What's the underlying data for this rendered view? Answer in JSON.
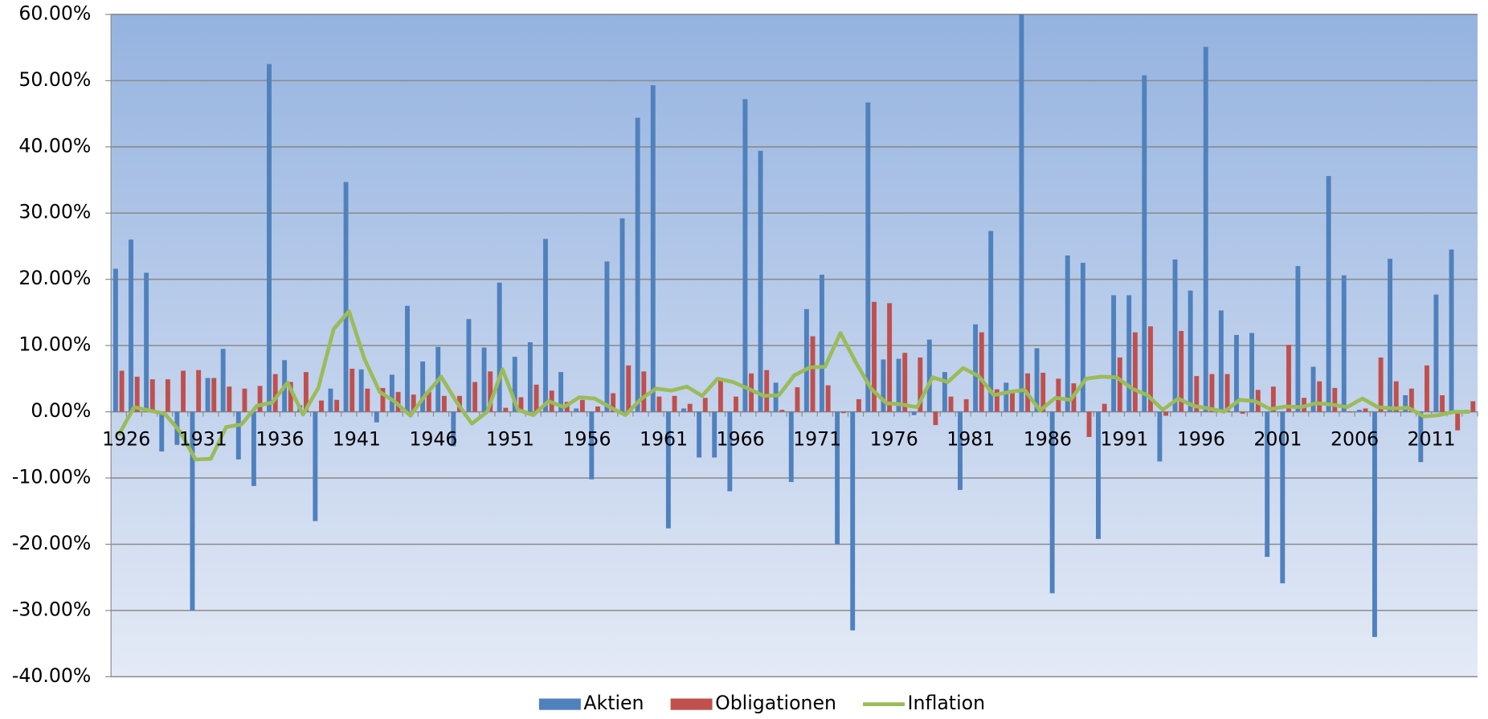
{
  "chart_data": {
    "type": "bar",
    "categories": [
      "1926",
      null,
      null,
      null,
      null,
      "1931",
      null,
      null,
      null,
      null,
      "1936",
      null,
      null,
      null,
      null,
      "1941",
      null,
      null,
      null,
      null,
      "1946",
      null,
      null,
      null,
      null,
      "1951",
      null,
      null,
      null,
      null,
      "1956",
      null,
      null,
      null,
      null,
      "1961",
      null,
      null,
      null,
      null,
      "1966",
      null,
      null,
      null,
      null,
      "1971",
      null,
      null,
      null,
      null,
      "1976",
      null,
      null,
      null,
      null,
      "1981",
      null,
      null,
      null,
      null,
      "1986",
      null,
      null,
      null,
      null,
      "1991",
      null,
      null,
      null,
      null,
      "1996",
      null,
      null,
      null,
      null,
      "2001",
      null,
      null,
      null,
      null,
      "2006",
      null,
      null,
      null,
      null,
      "2011",
      null,
      null,
      null
    ],
    "series": [
      {
        "name": "Aktien",
        "type": "bar",
        "color": "#4f81bd",
        "values": [
          21.6,
          26,
          21,
          -6,
          -5,
          -30,
          5.1,
          9.5,
          -7.2,
          -11.2,
          52.5,
          7.8,
          1,
          -16.5,
          3.5,
          34.7,
          6.4,
          -1.6,
          5.6,
          16,
          7.6,
          9.8,
          -5.2,
          14,
          9.7,
          19.5,
          8.3,
          10.5,
          26.1,
          6,
          0.5,
          -10.2,
          22.7,
          29.2,
          44.4,
          49.3,
          -17.6,
          0.5,
          -6.9,
          -6.9,
          -12,
          47.2,
          39.4,
          4.4,
          -10.6,
          15.5,
          20.7,
          -20,
          -33,
          46.7,
          7.9,
          8,
          -0.5,
          10.9,
          6,
          -11.8,
          13.2,
          27.3,
          4.4,
          60,
          9.6,
          -27.4,
          23.6,
          22.5,
          -19.2,
          17.6,
          17.6,
          50.8,
          -7.5,
          23,
          18.3,
          55.1,
          15.3,
          11.6,
          11.9,
          -21.9,
          -25.9,
          22,
          6.8,
          35.6,
          20.6,
          0.3,
          -34,
          23.1,
          2.5,
          -7.6,
          17.7,
          24.5,
          0.3
        ]
      },
      {
        "name": "Obligationen",
        "type": "bar",
        "color": "#c0504d",
        "values": [
          6.2,
          5.3,
          4.9,
          4.9,
          6.2,
          6.3,
          5.1,
          3.8,
          3.5,
          3.9,
          5.7,
          4.5,
          6,
          1.7,
          1.8,
          6.5,
          3.5,
          3.6,
          3,
          2.6,
          3,
          2.4,
          2.4,
          4.5,
          6.1,
          0.6,
          2.2,
          4.1,
          3.2,
          1.5,
          1.8,
          0.8,
          2.8,
          7,
          6.1,
          2.3,
          2.4,
          1.2,
          2.1,
          4.7,
          2.3,
          5.8,
          6.3,
          0.3,
          3.7,
          11.4,
          4,
          -0.2,
          1.9,
          16.6,
          16.4,
          8.9,
          8.2,
          -2,
          2.3,
          1.9,
          12,
          3.4,
          3,
          5.8,
          5.9,
          5,
          4.3,
          -3.8,
          1.2,
          8.2,
          12,
          12.9,
          -0.6,
          12.2,
          5.4,
          5.7,
          5.7,
          -0.3,
          3.3,
          3.8,
          10.1,
          2.1,
          4.6,
          3.6,
          -0.1,
          0.5,
          8.2,
          4.6,
          3.5,
          7,
          2.5,
          -2.8,
          1.6
        ]
      },
      {
        "name": "Inflation",
        "type": "line",
        "color": "#9bbb59",
        "values": [
          -3.5,
          0.7,
          0.2,
          -0.3,
          -3,
          -7.2,
          -7.1,
          -2.3,
          -1.9,
          0.9,
          1.4,
          4.4,
          -0.4,
          3.6,
          12.5,
          15.2,
          8,
          3,
          1.5,
          -0.6,
          2.6,
          5.3,
          1.5,
          -1.8,
          0,
          6.4,
          0.3,
          -0.5,
          1.6,
          0.7,
          2.2,
          2,
          0.7,
          -0.5,
          1.9,
          3.5,
          3.2,
          3.8,
          2.4,
          5,
          4.5,
          3.5,
          2.4,
          2.5,
          5.5,
          6.7,
          6.8,
          11.9,
          7.5,
          3.5,
          1.3,
          1.1,
          0.7,
          5.2,
          4.5,
          6.6,
          5.4,
          2.5,
          3,
          3.3,
          0.2,
          2.1,
          1.8,
          5,
          5.3,
          5.2,
          3.5,
          2.5,
          0.3,
          2,
          0.9,
          0.5,
          0,
          1.8,
          1.6,
          0.4,
          0.8,
          0.7,
          1.3,
          1.1,
          0.7,
          2,
          0.7,
          0.5,
          0.6,
          -0.7,
          -0.5,
          0,
          0
        ]
      }
    ],
    "ylim": [
      -40,
      60
    ],
    "yticks": [
      {
        "value": -40,
        "label": "-40.00%"
      },
      {
        "value": -30,
        "label": "-30.00%"
      },
      {
        "value": -20,
        "label": "-20.00%"
      },
      {
        "value": -10,
        "label": "-10.00%"
      },
      {
        "value": 0,
        "label": "0.00%"
      },
      {
        "value": 10,
        "label": "10.00%"
      },
      {
        "value": 20,
        "label": "20.00%"
      },
      {
        "value": 30,
        "label": "30.00%"
      },
      {
        "value": 40,
        "label": "40.00%"
      },
      {
        "value": 50,
        "label": "50.00%"
      },
      {
        "value": 60,
        "label": "60.00%"
      }
    ],
    "grid": true,
    "legend": "bottom"
  }
}
